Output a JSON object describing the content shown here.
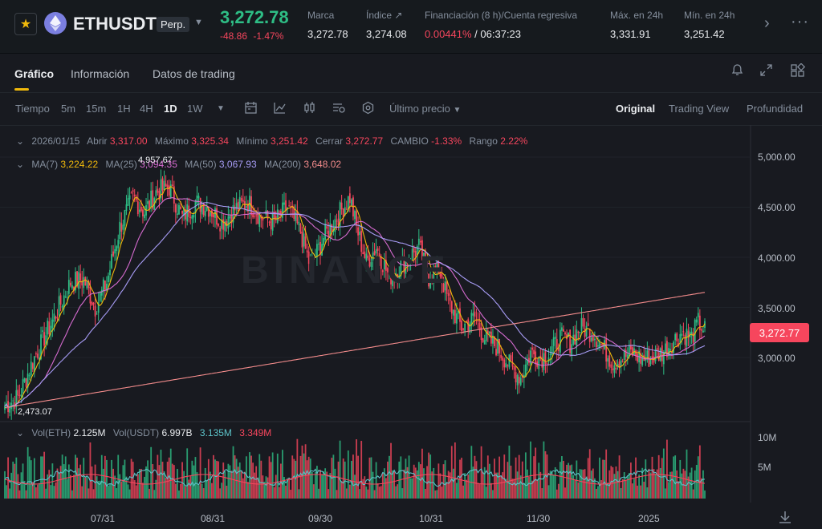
{
  "header": {
    "symbol": "ETHUSDT",
    "contract": "Perp.",
    "last_price": "3,272.78",
    "change_abs": "-48.86",
    "change_pct": "-1.47%",
    "stats": [
      {
        "label": "Marca",
        "value": "3,272.78"
      },
      {
        "label": "Índice ↗",
        "value": "3,274.08"
      },
      {
        "label": "Financiación (8 h)/Cuenta regresiva",
        "rate": "0.00441%",
        "sep": " / ",
        "countdown": "06:37:23"
      },
      {
        "label": "Máx. en 24h",
        "value": "3,331.91"
      },
      {
        "label": "Mín. en 24h",
        "value": "3,251.42"
      }
    ]
  },
  "tabs": [
    "Gráfico",
    "Información",
    "Datos de trading"
  ],
  "toolbar": {
    "time_label": "Tiempo",
    "intervals": [
      "5m",
      "15m",
      "1H",
      "4H",
      "1D",
      "1W"
    ],
    "active_interval": "1D",
    "price_type": "Último precio",
    "views": [
      "Original",
      "Trading View",
      "Profundidad"
    ],
    "active_view": "Original"
  },
  "ohlc": {
    "date": "2026/01/15",
    "open_label": "Abrir",
    "open": "3,317.00",
    "high_label": "Máximo",
    "high": "3,325.34",
    "low_label": "Mínimo",
    "low": "3,251.42",
    "close_label": "Cerrar",
    "close": "3,272.77",
    "change_label": "CAMBIO",
    "change": "-1.33%",
    "range_label": "Rango",
    "range": "2.22%"
  },
  "ma": {
    "ma7_label": "MA(7)",
    "ma7": "3,224.22",
    "ma25_label": "MA(25)",
    "ma25": "3,094.35",
    "ma50_label": "MA(50)",
    "ma50": "3,067.93",
    "ma200_label": "MA(200)",
    "ma200": "3,648.02"
  },
  "volume": {
    "eth_label": "Vol(ETH)",
    "eth": "2.125M",
    "usdt_label": "Vol(USDT)",
    "usdt": "6.997B",
    "ma1": "3.135M",
    "ma2": "3.349M",
    "axis": [
      "10M",
      "5M"
    ]
  },
  "price_axis": [
    "5,000.00",
    "4,500.00",
    "4,000.00",
    "3,500.00",
    "3,000.00"
  ],
  "current_price_tag": "3,272.77",
  "annotations": {
    "high": "4,957.67",
    "low": "2,473.07"
  },
  "watermark": "BINANCE",
  "dates": [
    "07/31",
    "08/31",
    "09/30",
    "10/31",
    "11/30",
    "2025"
  ],
  "colors": {
    "up": "#2ebd85",
    "down": "#f6465d",
    "ma7": "#f0b90b",
    "ma25": "#d66bd0",
    "ma50": "#a79cf5",
    "ma200": "#f28b8b"
  },
  "chart_data": {
    "type": "candlestick",
    "price_range": [
      2400,
      5200
    ],
    "anchors": [
      [
        0,
        2520
      ],
      [
        8,
        2600
      ],
      [
        18,
        3000
      ],
      [
        30,
        3400
      ],
      [
        40,
        3750
      ],
      [
        48,
        3780
      ],
      [
        55,
        3500
      ],
      [
        62,
        3750
      ],
      [
        70,
        4300
      ],
      [
        78,
        4600
      ],
      [
        85,
        4450
      ],
      [
        92,
        4650
      ],
      [
        100,
        4700
      ],
      [
        108,
        4400
      ],
      [
        116,
        4550
      ],
      [
        124,
        4500
      ],
      [
        132,
        4350
      ],
      [
        140,
        4480
      ],
      [
        148,
        4550
      ],
      [
        156,
        4400
      ],
      [
        164,
        4350
      ],
      [
        172,
        4500
      ],
      [
        180,
        4250
      ],
      [
        186,
        3900
      ],
      [
        194,
        4200
      ],
      [
        202,
        4400
      ],
      [
        210,
        4600
      ],
      [
        214,
        4300
      ],
      [
        220,
        3950
      ],
      [
        226,
        4100
      ],
      [
        234,
        3800
      ],
      [
        240,
        3900
      ],
      [
        246,
        4000
      ],
      [
        252,
        4100
      ],
      [
        258,
        3800
      ],
      [
        264,
        3900
      ],
      [
        270,
        3550
      ],
      [
        278,
        3300
      ],
      [
        286,
        3400
      ],
      [
        292,
        3200
      ],
      [
        300,
        3100
      ],
      [
        308,
        2900
      ],
      [
        314,
        2800
      ],
      [
        320,
        3050
      ],
      [
        326,
        3000
      ],
      [
        332,
        3050
      ],
      [
        338,
        3200
      ],
      [
        344,
        3150
      ],
      [
        350,
        3300
      ],
      [
        358,
        3250
      ],
      [
        364,
        3100
      ],
      [
        370,
        2950
      ],
      [
        376,
        3000
      ],
      [
        382,
        3050
      ],
      [
        388,
        2980
      ],
      [
        394,
        3000
      ],
      [
        400,
        3050
      ],
      [
        406,
        3150
      ],
      [
        412,
        3250
      ],
      [
        418,
        3200
      ],
      [
        422,
        3350
      ],
      [
        426,
        3273
      ]
    ]
  }
}
